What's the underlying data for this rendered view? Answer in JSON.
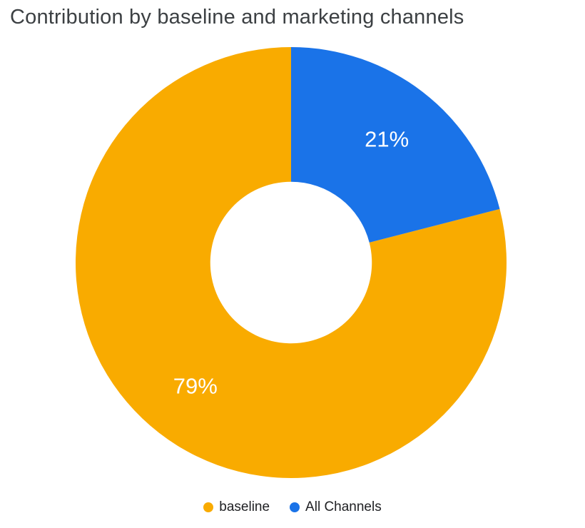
{
  "chart_data": {
    "type": "pie",
    "title": "Contribution by baseline and marketing channels",
    "donut": true,
    "inner_radius_ratio": 0.375,
    "start_angle": "top",
    "direction": "counterclockwise",
    "legend_position": "bottom",
    "title_color": "#3c4043",
    "label_color": "#ffffff",
    "background": "#ffffff",
    "slices": [
      {
        "label": "baseline",
        "value": 79,
        "percent_label": "79%",
        "color": "#F9AB00"
      },
      {
        "label": "All Channels",
        "value": 21,
        "percent_label": "21%",
        "color": "#1A73E8"
      }
    ]
  }
}
